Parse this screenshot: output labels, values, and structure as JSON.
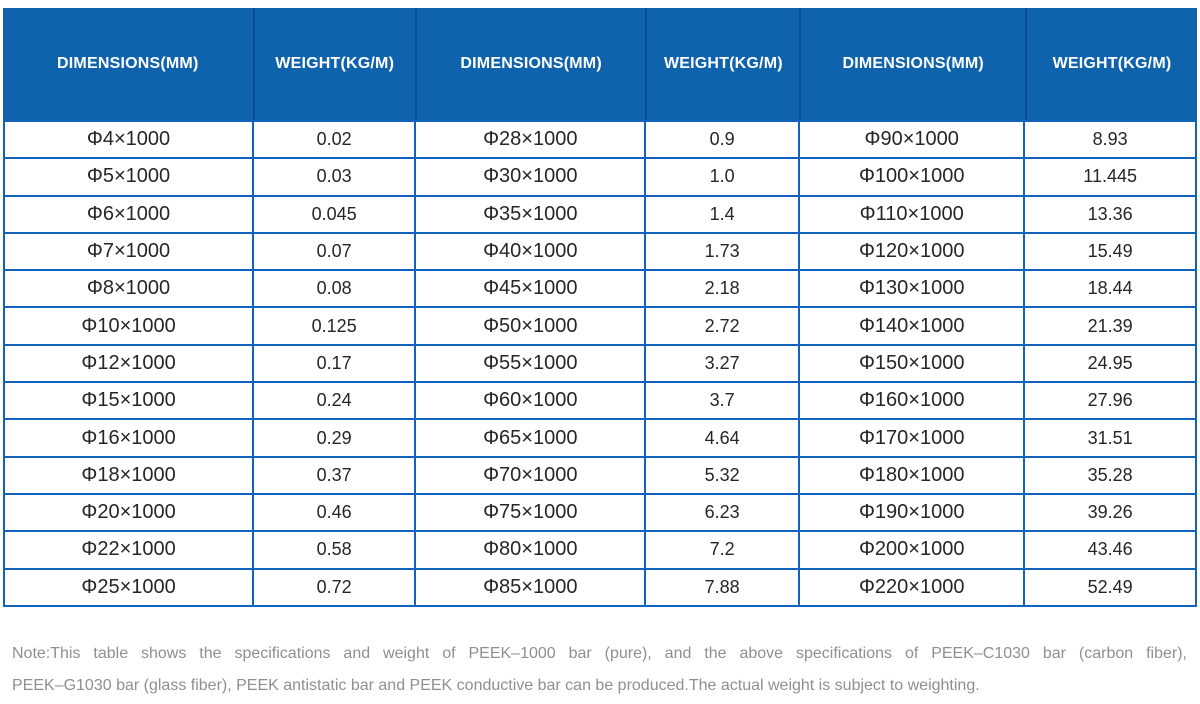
{
  "colors": {
    "header_background": "#0f63ad",
    "header_text": "#ffffff",
    "header_divider": "#0b4d92",
    "body_border": "#1164bd",
    "body_text": "#262626",
    "note_text": "#8f8f8f"
  },
  "table": {
    "headers": [
      "DIMENSIONS(MM)",
      "WEIGHT(KG/M)",
      "DIMENSIONS(MM)",
      "WEIGHT(KG/M)",
      "DIMENSIONS(MM)",
      "WEIGHT(KG/M)"
    ],
    "rows": [
      [
        "Φ4×1000",
        "0.02",
        "Φ28×1000",
        "0.9",
        "Φ90×1000",
        "8.93"
      ],
      [
        "Φ5×1000",
        "0.03",
        "Φ30×1000",
        "1.0",
        "Φ100×1000",
        "11.445"
      ],
      [
        "Φ6×1000",
        "0.045",
        "Φ35×1000",
        "1.4",
        "Φ110×1000",
        "13.36"
      ],
      [
        "Φ7×1000",
        "0.07",
        "Φ40×1000",
        "1.73",
        "Φ120×1000",
        "15.49"
      ],
      [
        "Φ8×1000",
        "0.08",
        "Φ45×1000",
        "2.18",
        "Φ130×1000",
        "18.44"
      ],
      [
        "Φ10×1000",
        "0.125",
        "Φ50×1000",
        "2.72",
        "Φ140×1000",
        "21.39"
      ],
      [
        "Φ12×1000",
        "0.17",
        "Φ55×1000",
        "3.27",
        "Φ150×1000",
        "24.95"
      ],
      [
        "Φ15×1000",
        "0.24",
        "Φ60×1000",
        "3.7",
        "Φ160×1000",
        "27.96"
      ],
      [
        "Φ16×1000",
        "0.29",
        "Φ65×1000",
        "4.64",
        "Φ170×1000",
        "31.51"
      ],
      [
        "Φ18×1000",
        "0.37",
        "Φ70×1000",
        "5.32",
        "Φ180×1000",
        "35.28"
      ],
      [
        "Φ20×1000",
        "0.46",
        "Φ75×1000",
        "6.23",
        "Φ190×1000",
        "39.26"
      ],
      [
        "Φ22×1000",
        "0.58",
        "Φ80×1000",
        "7.2",
        "Φ200×1000",
        "43.46"
      ],
      [
        "Φ25×1000",
        "0.72",
        "Φ85×1000",
        "7.88",
        "Φ220×1000",
        "52.49"
      ]
    ]
  },
  "note": {
    "line1": "Note:This table shows the specifications and weight of PEEK–1000 bar (pure), and the above specifications of PEEK–C1030 bar (carbon fiber),",
    "line2": "PEEK–G1030 bar (glass fiber), PEEK antistatic bar and PEEK conductive bar can be produced.The actual weight is subject to weighting."
  },
  "chart_data": {
    "type": "table",
    "title": "PEEK-1000 bar (pure) specifications and weight",
    "columns": [
      "DIMENSIONS(MM)",
      "WEIGHT(KG/M)",
      "DIMENSIONS(MM)",
      "WEIGHT(KG/M)",
      "DIMENSIONS(MM)",
      "WEIGHT(KG/M)"
    ],
    "rows": [
      [
        "Φ4×1000",
        0.02,
        "Φ28×1000",
        0.9,
        "Φ90×1000",
        8.93
      ],
      [
        "Φ5×1000",
        0.03,
        "Φ30×1000",
        1.0,
        "Φ100×1000",
        11.445
      ],
      [
        "Φ6×1000",
        0.045,
        "Φ35×1000",
        1.4,
        "Φ110×1000",
        13.36
      ],
      [
        "Φ7×1000",
        0.07,
        "Φ40×1000",
        1.73,
        "Φ120×1000",
        15.49
      ],
      [
        "Φ8×1000",
        0.08,
        "Φ45×1000",
        2.18,
        "Φ130×1000",
        18.44
      ],
      [
        "Φ10×1000",
        0.125,
        "Φ50×1000",
        2.72,
        "Φ140×1000",
        21.39
      ],
      [
        "Φ12×1000",
        0.17,
        "Φ55×1000",
        3.27,
        "Φ150×1000",
        24.95
      ],
      [
        "Φ15×1000",
        0.24,
        "Φ60×1000",
        3.7,
        "Φ160×1000",
        27.96
      ],
      [
        "Φ16×1000",
        0.29,
        "Φ65×1000",
        4.64,
        "Φ170×1000",
        31.51
      ],
      [
        "Φ18×1000",
        0.37,
        "Φ70×1000",
        5.32,
        "Φ180×1000",
        35.28
      ],
      [
        "Φ20×1000",
        0.46,
        "Φ75×1000",
        6.23,
        "Φ190×1000",
        39.26
      ],
      [
        "Φ22×1000",
        0.58,
        "Φ80×1000",
        7.2,
        "Φ200×1000",
        43.46
      ],
      [
        "Φ25×1000",
        0.72,
        "Φ85×1000",
        7.88,
        "Φ220×1000",
        52.49
      ]
    ]
  }
}
